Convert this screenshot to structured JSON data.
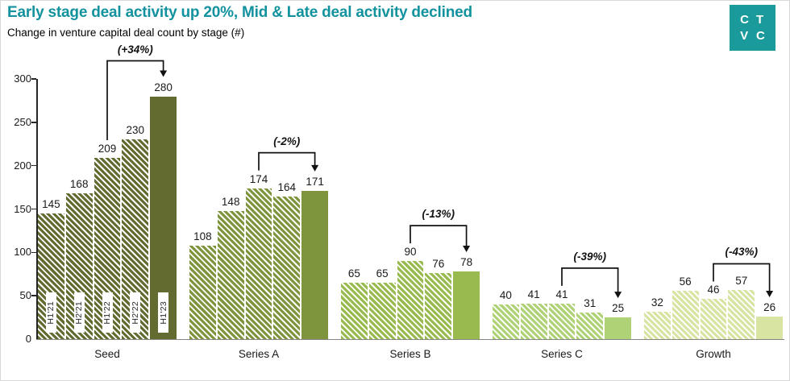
{
  "header": {
    "title": "Early stage deal activity up 20%, Mid & Late deal activity declined",
    "subtitle": "Change in venture capital deal count by stage (#)"
  },
  "logo": {
    "letters": [
      "C",
      "T",
      "V",
      "C"
    ],
    "background": "#1b9a9b",
    "text_color": "#ffffff"
  },
  "colors": {
    "title_text": "#12929e",
    "axis_line": "#262626",
    "baseline": "#858585",
    "label_text": "#1a1a1a",
    "annotation_line": "#111111"
  },
  "chart_data": {
    "type": "bar",
    "title": "Change in venture capital deal count by stage (#)",
    "categories": [
      "Seed",
      "Series A",
      "Series B",
      "Series C",
      "Growth"
    ],
    "periods": [
      "H1'21",
      "H2'21",
      "H1'22",
      "H2'22",
      "H1'23"
    ],
    "series": [
      {
        "name": "H1'21",
        "values": [
          145,
          108,
          65,
          40,
          32
        ]
      },
      {
        "name": "H2'21",
        "values": [
          168,
          148,
          65,
          41,
          56
        ]
      },
      {
        "name": "H1'22",
        "values": [
          209,
          174,
          90,
          41,
          46
        ]
      },
      {
        "name": "H2'22",
        "values": [
          230,
          164,
          76,
          31,
          57
        ]
      },
      {
        "name": "H1'23",
        "values": [
          280,
          171,
          78,
          25,
          26
        ]
      }
    ],
    "category_colors": [
      "#646b31",
      "#7e953e",
      "#99ba4e",
      "#b0d277",
      "#d7e4a2"
    ],
    "hatched_periods": [
      "H1'21",
      "H2'21",
      "H1'22",
      "H2'22"
    ],
    "solid_period": "H1'23",
    "in_bar_period_labels_category": "Seed",
    "annotations": [
      {
        "category": "Seed",
        "label": "(+34%)",
        "from_period": "H1'22",
        "to_period": "H1'23"
      },
      {
        "category": "Series A",
        "label": "(-2%)",
        "from_period": "H1'22",
        "to_period": "H1'23"
      },
      {
        "category": "Series B",
        "label": "(-13%)",
        "from_period": "H1'22",
        "to_period": "H1'23"
      },
      {
        "category": "Series C",
        "label": "(-39%)",
        "from_period": "H1'22",
        "to_period": "H1'23"
      },
      {
        "category": "Growth",
        "label": "(-43%)",
        "from_period": "H1'22",
        "to_period": "H1'23"
      }
    ],
    "ylim": [
      0,
      300
    ],
    "yticks": [
      0,
      50,
      100,
      150,
      200,
      250,
      300
    ],
    "grid": false,
    "legend": false,
    "bar_value_labels": true
  }
}
